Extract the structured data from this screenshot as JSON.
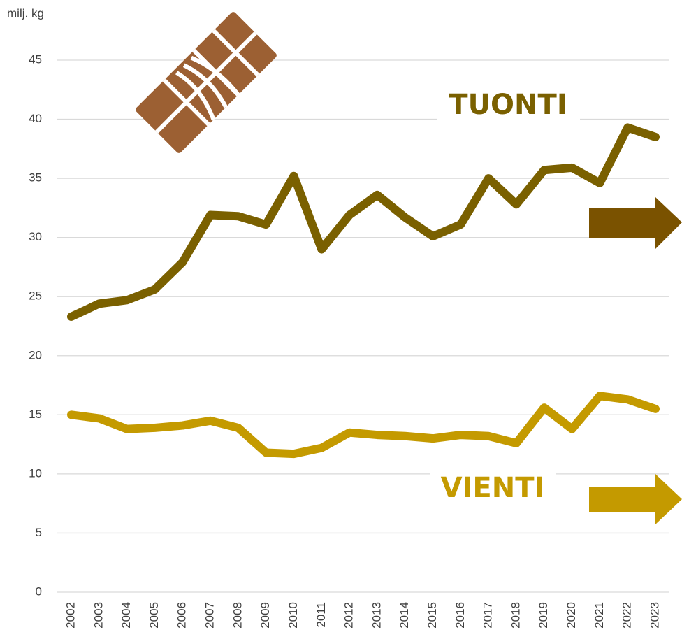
{
  "chart_data": {
    "type": "line",
    "y_axis_label": "milj. kg",
    "categories": [
      "2002",
      "2003",
      "2004",
      "2005",
      "2006",
      "2007",
      "2008",
      "2009",
      "2010",
      "2011",
      "2012",
      "2013",
      "2014",
      "2015",
      "2016",
      "2017",
      "2018",
      "2019",
      "2020",
      "2021",
      "2022",
      "2023"
    ],
    "series": [
      {
        "name": "TUONTI",
        "color": "#7a6000",
        "values": [
          23.3,
          24.4,
          24.7,
          25.6,
          27.9,
          31.9,
          31.8,
          31.1,
          35.2,
          29.0,
          31.9,
          33.6,
          31.7,
          30.1,
          31.1,
          35.0,
          32.8,
          35.7,
          35.9,
          34.6,
          39.3,
          38.5
        ]
      },
      {
        "name": "VIENTI",
        "color": "#c49a00",
        "values": [
          15.0,
          14.7,
          13.8,
          13.9,
          14.1,
          14.5,
          13.9,
          11.8,
          11.7,
          12.2,
          13.5,
          13.3,
          13.2,
          13.0,
          13.3,
          13.2,
          12.6,
          15.6,
          13.8,
          16.6,
          16.3,
          15.5
        ]
      }
    ],
    "ylim": [
      0,
      45
    ],
    "yticks": [
      0,
      5,
      10,
      15,
      20,
      25,
      30,
      35,
      40,
      45
    ],
    "grid": true
  }
}
